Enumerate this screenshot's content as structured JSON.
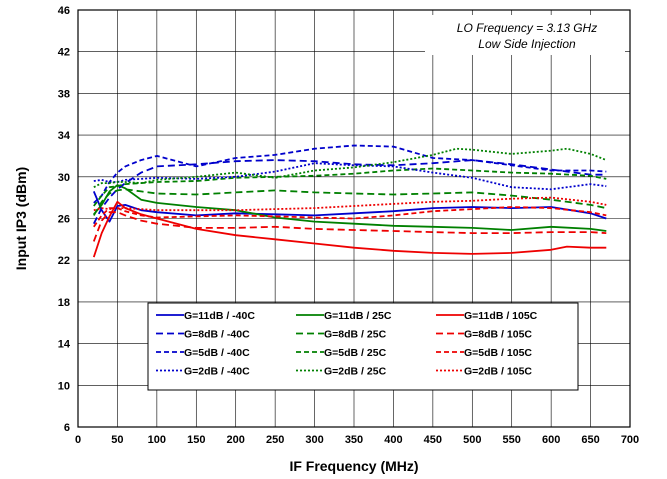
{
  "chart_data": {
    "type": "line",
    "xlabel": "IF Frequency (MHz)",
    "ylabel": "Input IP3 (dBm)",
    "xlim": [
      0,
      700
    ],
    "ylim": [
      6,
      46
    ],
    "xticks": [
      0,
      50,
      100,
      150,
      200,
      250,
      300,
      350,
      400,
      450,
      500,
      550,
      600,
      650,
      700
    ],
    "yticks": [
      6,
      10,
      14,
      18,
      22,
      26,
      30,
      34,
      38,
      42,
      46
    ],
    "grid": true,
    "legend_position": "lower-center",
    "annotation": [
      "LO Frequency = 3.13 GHz",
      "Low Side Injection"
    ],
    "series": [
      {
        "name": "G=11dB / -40C",
        "color": "#0000cc",
        "dash": "solid",
        "x": [
          20,
          30,
          40,
          50,
          60,
          80,
          100,
          150,
          200,
          250,
          300,
          350,
          400,
          450,
          500,
          550,
          600,
          650,
          670
        ],
        "y": [
          28.6,
          26.8,
          25.7,
          27.2,
          27.3,
          26.8,
          26.6,
          26.3,
          26.5,
          26.4,
          26.3,
          26.5,
          26.7,
          27.0,
          27.1,
          27.0,
          27.1,
          26.5,
          26.0
        ]
      },
      {
        "name": "G=11dB / 25C",
        "color": "#008000",
        "dash": "solid",
        "x": [
          20,
          30,
          40,
          50,
          60,
          80,
          100,
          150,
          200,
          250,
          300,
          350,
          400,
          450,
          500,
          550,
          600,
          650,
          670
        ],
        "y": [
          26.4,
          27.3,
          28.6,
          29.2,
          28.9,
          27.8,
          27.5,
          27.1,
          26.8,
          26.1,
          25.7,
          25.5,
          25.3,
          25.2,
          25.1,
          24.9,
          25.2,
          25.0,
          24.8
        ]
      },
      {
        "name": "G=11dB / 105C",
        "color": "#ee0000",
        "dash": "solid",
        "x": [
          20,
          30,
          40,
          50,
          60,
          80,
          100,
          150,
          200,
          250,
          300,
          350,
          400,
          450,
          500,
          550,
          600,
          620,
          650,
          670
        ],
        "y": [
          22.3,
          24.6,
          26.2,
          27.6,
          27.0,
          26.4,
          26.0,
          25.0,
          24.4,
          24.0,
          23.6,
          23.2,
          22.9,
          22.7,
          22.6,
          22.7,
          23.0,
          23.3,
          23.2,
          23.2
        ]
      },
      {
        "name": "G=8dB / -40C",
        "color": "#0000cc",
        "dash": "dash",
        "x": [
          20,
          30,
          40,
          50,
          60,
          80,
          100,
          150,
          200,
          250,
          300,
          350,
          400,
          450,
          500,
          550,
          600,
          650,
          670
        ],
        "y": [
          25.5,
          27.0,
          28.0,
          28.8,
          29.4,
          30.4,
          31.0,
          31.2,
          31.5,
          31.6,
          31.5,
          31.2,
          31.1,
          31.3,
          31.6,
          31.2,
          30.7,
          30.2,
          30.2
        ]
      },
      {
        "name": "G=8dB / 25C",
        "color": "#008000",
        "dash": "dash",
        "x": [
          20,
          30,
          40,
          50,
          60,
          80,
          100,
          150,
          200,
          250,
          300,
          350,
          400,
          450,
          500,
          550,
          600,
          650,
          670
        ],
        "y": [
          26.3,
          27.6,
          28.4,
          28.7,
          28.8,
          28.6,
          28.4,
          28.3,
          28.5,
          28.7,
          28.5,
          28.4,
          28.3,
          28.4,
          28.5,
          28.2,
          27.8,
          27.3,
          27.0
        ]
      },
      {
        "name": "G=8dB / 105C",
        "color": "#ee0000",
        "dash": "dash",
        "x": [
          20,
          30,
          40,
          50,
          60,
          80,
          100,
          150,
          200,
          250,
          300,
          350,
          400,
          450,
          500,
          550,
          600,
          650,
          670
        ],
        "y": [
          23.8,
          25.8,
          26.6,
          26.6,
          26.3,
          25.8,
          25.5,
          25.1,
          25.1,
          25.2,
          25.0,
          24.9,
          24.8,
          24.7,
          24.6,
          24.6,
          24.7,
          24.7,
          24.6
        ]
      },
      {
        "name": "G=5dB / -40C",
        "color": "#0000cc",
        "dash": "dashlong",
        "x": [
          20,
          30,
          40,
          50,
          60,
          80,
          100,
          150,
          200,
          250,
          300,
          350,
          400,
          450,
          500,
          550,
          600,
          650,
          670
        ],
        "y": [
          27.5,
          28.2,
          29.5,
          30.4,
          31.0,
          31.6,
          32.0,
          31.0,
          31.8,
          32.1,
          32.7,
          33.0,
          32.9,
          31.8,
          31.6,
          31.1,
          30.6,
          30.6,
          30.5
        ]
      },
      {
        "name": "G=5dB / 25C",
        "color": "#008000",
        "dash": "dashlong",
        "x": [
          20,
          30,
          40,
          50,
          60,
          80,
          100,
          150,
          200,
          250,
          300,
          350,
          400,
          450,
          500,
          550,
          600,
          650,
          670
        ],
        "y": [
          27.2,
          28.2,
          29.0,
          29.1,
          29.3,
          29.4,
          29.5,
          29.6,
          29.9,
          30.0,
          30.1,
          30.3,
          30.6,
          30.8,
          30.6,
          30.4,
          30.3,
          30.1,
          29.8
        ]
      },
      {
        "name": "G=5dB / 105C",
        "color": "#ee0000",
        "dash": "dashlong",
        "x": [
          20,
          30,
          40,
          50,
          60,
          80,
          100,
          150,
          200,
          250,
          300,
          350,
          400,
          450,
          500,
          550,
          600,
          650,
          670
        ],
        "y": [
          25.2,
          26.3,
          27.0,
          27.0,
          26.7,
          26.3,
          26.1,
          26.2,
          26.3,
          26.2,
          26.1,
          26.0,
          26.3,
          26.7,
          26.9,
          27.1,
          27.0,
          26.6,
          26.3
        ]
      },
      {
        "name": "G=2dB / -40C",
        "color": "#0000cc",
        "dash": "dot",
        "x": [
          20,
          30,
          40,
          50,
          60,
          80,
          100,
          150,
          200,
          250,
          300,
          350,
          400,
          450,
          500,
          550,
          600,
          650,
          670
        ],
        "y": [
          29.6,
          29.7,
          29.5,
          29.5,
          29.7,
          29.8,
          29.9,
          29.8,
          30.0,
          30.5,
          31.3,
          31.1,
          31.0,
          30.4,
          29.9,
          29.0,
          28.8,
          29.3,
          29.1
        ]
      },
      {
        "name": "G=2dB / 25C",
        "color": "#008000",
        "dash": "dot",
        "x": [
          20,
          30,
          40,
          50,
          60,
          80,
          100,
          150,
          200,
          250,
          300,
          350,
          400,
          450,
          480,
          500,
          550,
          600,
          620,
          650,
          670
        ],
        "y": [
          29.0,
          29.4,
          29.4,
          29.5,
          29.5,
          29.4,
          29.7,
          30.0,
          30.4,
          29.9,
          30.6,
          30.9,
          31.4,
          32.1,
          32.7,
          32.6,
          32.2,
          32.5,
          32.7,
          32.2,
          31.6
        ]
      },
      {
        "name": "G=2dB / 105C",
        "color": "#ee0000",
        "dash": "dot",
        "x": [
          20,
          30,
          40,
          50,
          60,
          80,
          100,
          150,
          200,
          250,
          300,
          350,
          400,
          450,
          500,
          550,
          600,
          650,
          670
        ],
        "y": [
          26.8,
          27.0,
          26.9,
          27.0,
          27.0,
          26.9,
          26.8,
          26.8,
          26.8,
          26.9,
          27.0,
          27.2,
          27.4,
          27.6,
          27.7,
          27.9,
          28.0,
          27.6,
          27.3
        ]
      }
    ]
  }
}
